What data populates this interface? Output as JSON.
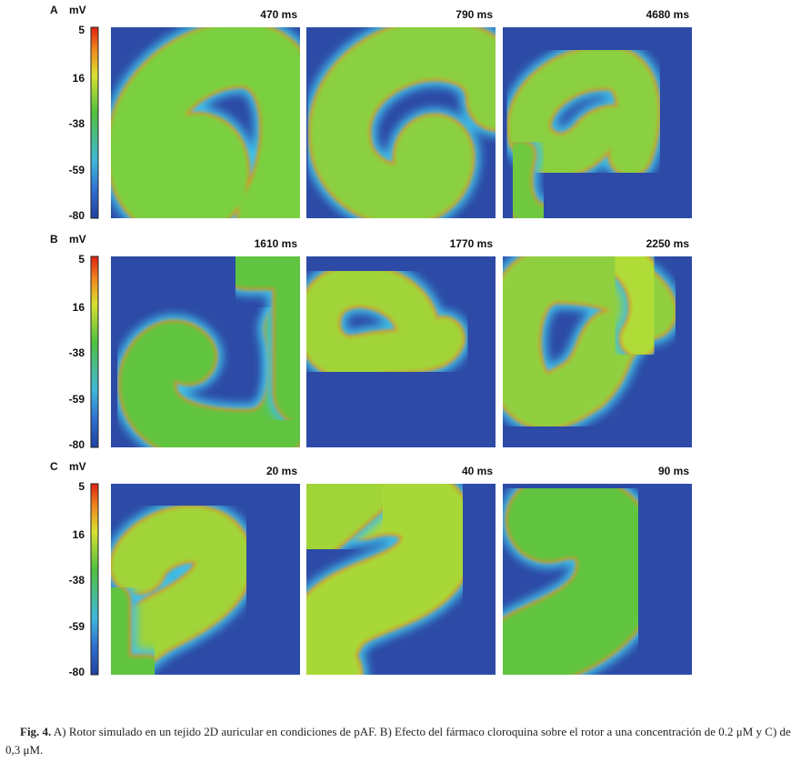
{
  "panels": [
    {
      "label": "A",
      "unit": "mV",
      "scale": [
        "5",
        "16",
        "-38",
        "-59",
        "-80"
      ],
      "frames": [
        {
          "time": "470 ms"
        },
        {
          "time": "790 ms"
        },
        {
          "time": "4680 ms"
        }
      ]
    },
    {
      "label": "B",
      "unit": "mV",
      "scale": [
        "5",
        "16",
        "-38",
        "-59",
        "-80"
      ],
      "frames": [
        {
          "time": "1610 ms"
        },
        {
          "time": "1770 ms"
        },
        {
          "time": "2250 ms"
        }
      ]
    },
    {
      "label": "C",
      "unit": "mV",
      "scale": [
        "5",
        "16",
        "-38",
        "-59",
        "-80"
      ],
      "frames": [
        {
          "time": "20 ms"
        },
        {
          "time": "40 ms"
        },
        {
          "time": "90 ms"
        }
      ]
    }
  ],
  "caption": {
    "label": "Fig. 4.",
    "text": "A) Rotor simulado en un tejido 2D auricular en condiciones de pAF. B) Efecto del fármaco cloroquina sobre el rotor a una concentración de 0.2 μM y C) de 0,3 μM."
  }
}
